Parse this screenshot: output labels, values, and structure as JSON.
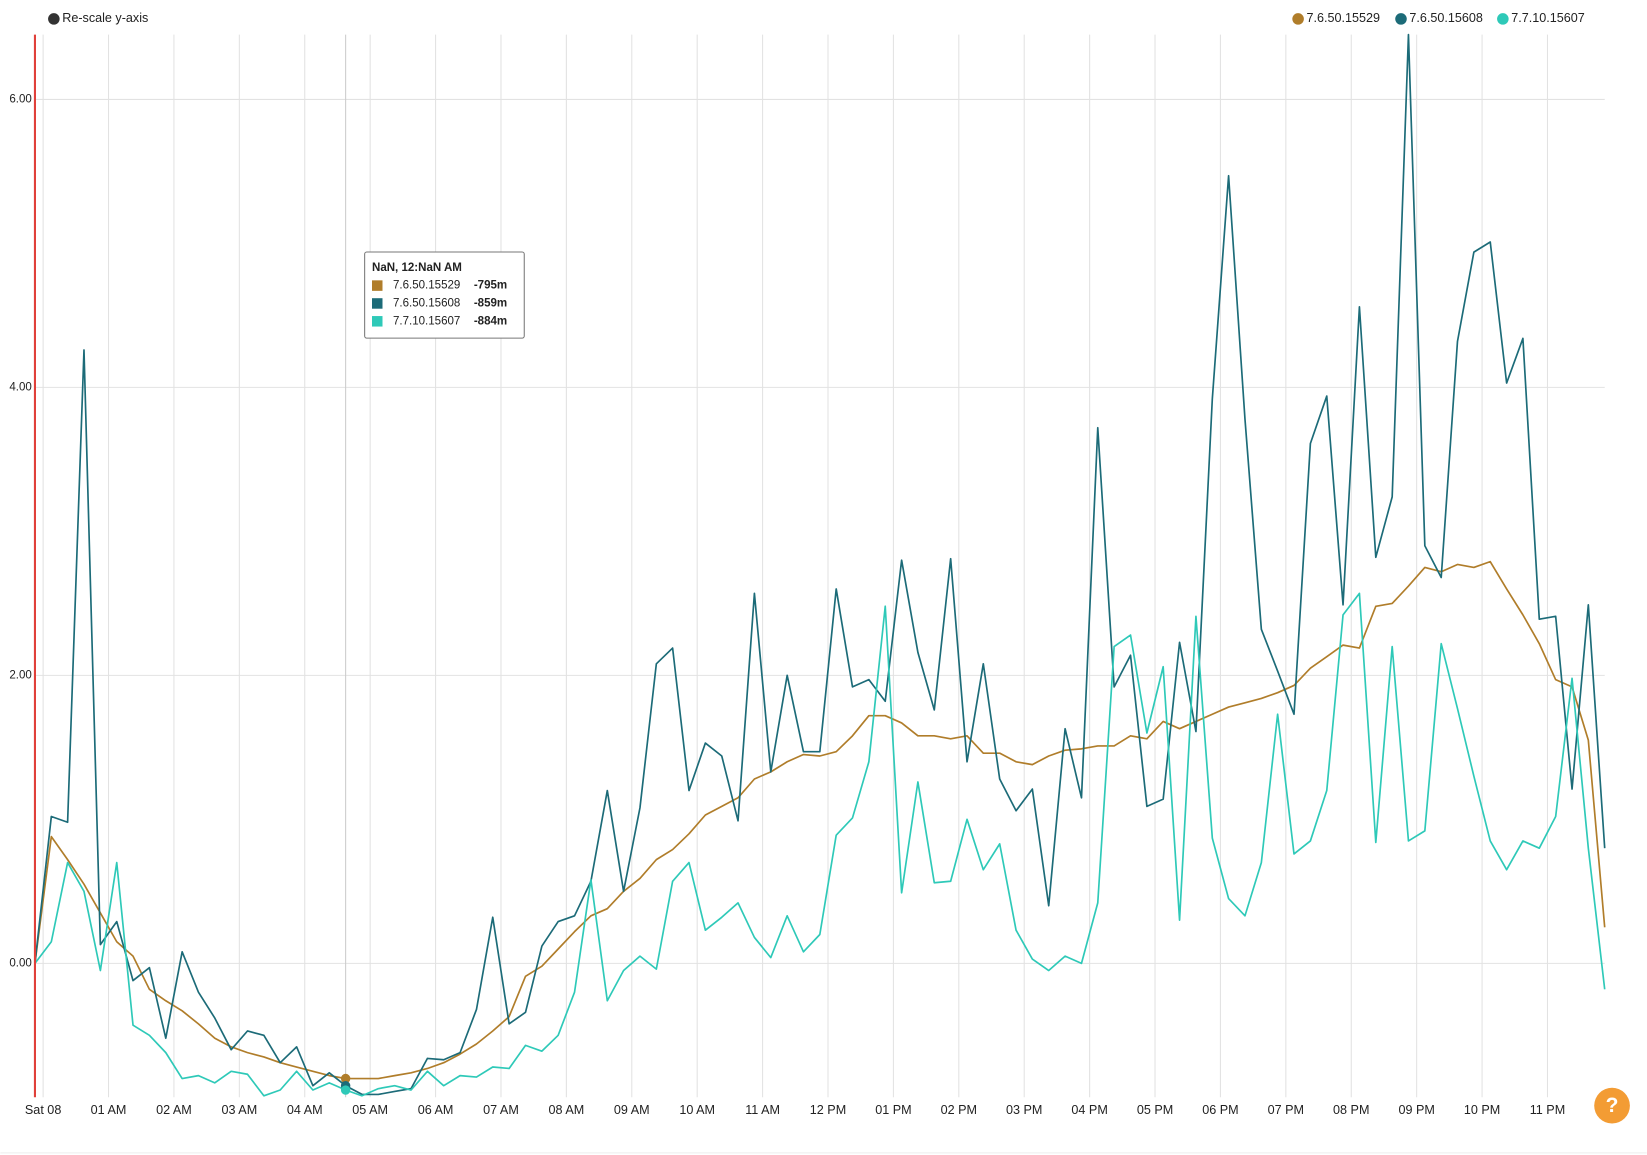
{
  "rescale_button": "Re-scale y-axis",
  "tooltip": {
    "title": "NaN, 12:NaN AM",
    "values": [
      "-795m",
      "-859m",
      "-884m"
    ]
  },
  "help_button": "?",
  "chart_data": {
    "type": "line",
    "grid": true,
    "legend": "top-right",
    "xlim": [
      0,
      96
    ],
    "ylim": [
      -0.93,
      6.45
    ],
    "yticks": [
      {
        "value": 0,
        "label": "0.00"
      },
      {
        "value": 2,
        "label": "2.00"
      },
      {
        "value": 4,
        "label": "4.00"
      },
      {
        "value": 6,
        "label": "6.00"
      }
    ],
    "xticks": [
      {
        "value": 0.5,
        "label": "Sat 08"
      },
      {
        "value": 4.5,
        "label": "01 AM"
      },
      {
        "value": 8.5,
        "label": "02 AM"
      },
      {
        "value": 12.5,
        "label": "03 AM"
      },
      {
        "value": 16.5,
        "label": "04 AM"
      },
      {
        "value": 20.5,
        "label": "05 AM"
      },
      {
        "value": 24.5,
        "label": "06 AM"
      },
      {
        "value": 28.5,
        "label": "07 AM"
      },
      {
        "value": 32.5,
        "label": "08 AM"
      },
      {
        "value": 36.5,
        "label": "09 AM"
      },
      {
        "value": 40.5,
        "label": "10 AM"
      },
      {
        "value": 44.5,
        "label": "11 AM"
      },
      {
        "value": 48.5,
        "label": "12 PM"
      },
      {
        "value": 52.5,
        "label": "01 PM"
      },
      {
        "value": 56.5,
        "label": "02 PM"
      },
      {
        "value": 60.5,
        "label": "03 PM"
      },
      {
        "value": 64.5,
        "label": "04 PM"
      },
      {
        "value": 68.5,
        "label": "05 PM"
      },
      {
        "value": 72.5,
        "label": "06 PM"
      },
      {
        "value": 76.5,
        "label": "07 PM"
      },
      {
        "value": 80.5,
        "label": "08 PM"
      },
      {
        "value": 84.5,
        "label": "09 PM"
      },
      {
        "value": 88.5,
        "label": "10 PM"
      },
      {
        "value": 92.5,
        "label": "11 PM"
      }
    ],
    "series": [
      {
        "name": "7.6.50.15529",
        "color": "#b07d2a",
        "values": [
          0,
          0.88,
          0.72,
          0.55,
          0.35,
          0.15,
          0.05,
          -0.18,
          -0.26,
          -0.33,
          -0.42,
          -0.52,
          -0.58,
          -0.62,
          -0.65,
          -0.69,
          -0.72,
          -0.75,
          -0.78,
          -0.8,
          -0.8,
          -0.8,
          -0.78,
          -0.76,
          -0.73,
          -0.69,
          -0.63,
          -0.56,
          -0.47,
          -0.37,
          -0.09,
          -0.02,
          0.1,
          0.22,
          0.33,
          0.38,
          0.5,
          0.59,
          0.72,
          0.79,
          0.9,
          1.03,
          1.09,
          1.15,
          1.28,
          1.33,
          1.4,
          1.45,
          1.44,
          1.47,
          1.58,
          1.72,
          1.72,
          1.67,
          1.58,
          1.58,
          1.56,
          1.58,
          1.46,
          1.46,
          1.4,
          1.38,
          1.44,
          1.48,
          1.49,
          1.51,
          1.51,
          1.58,
          1.56,
          1.68,
          1.63,
          1.68,
          1.73,
          1.78,
          1.81,
          1.84,
          1.88,
          1.93,
          2.05,
          2.13,
          2.21,
          2.19,
          2.48,
          2.5,
          2.62,
          2.75,
          2.72,
          2.77,
          2.75,
          2.79,
          2.6,
          2.42,
          2.22,
          1.97,
          1.92,
          1.55,
          0.25
        ]
      },
      {
        "name": "7.6.50.15608",
        "color": "#1c6b78",
        "values": [
          0,
          1.02,
          0.98,
          4.26,
          0.13,
          0.29,
          -0.12,
          -0.03,
          -0.52,
          0.08,
          -0.2,
          -0.38,
          -0.6,
          -0.47,
          -0.5,
          -0.69,
          -0.58,
          -0.85,
          -0.76,
          -0.85,
          -0.91,
          -0.91,
          -0.89,
          -0.87,
          -0.66,
          -0.67,
          -0.62,
          -0.32,
          0.32,
          -0.42,
          -0.34,
          0.12,
          0.29,
          0.33,
          0.57,
          1.2,
          0.5,
          1.08,
          2.08,
          2.19,
          1.2,
          1.53,
          1.44,
          0.99,
          2.57,
          1.33,
          2.0,
          1.47,
          1.47,
          2.6,
          1.92,
          1.97,
          1.82,
          2.8,
          2.16,
          1.76,
          2.81,
          1.4,
          2.08,
          1.28,
          1.06,
          1.21,
          0.4,
          1.63,
          1.15,
          3.72,
          1.92,
          2.14,
          1.09,
          1.14,
          2.23,
          1.61,
          3.92,
          5.47,
          3.78,
          2.32,
          2.03,
          1.73,
          3.61,
          3.94,
          2.49,
          4.56,
          2.82,
          3.24,
          6.45,
          2.9,
          2.68,
          4.32,
          4.94,
          5.01,
          4.03,
          4.34,
          2.39,
          2.41,
          1.21,
          2.49,
          0.8
        ]
      },
      {
        "name": "7.7.10.15607",
        "color": "#2ec9b8",
        "values": [
          0,
          0.15,
          0.7,
          0.5,
          -0.05,
          0.7,
          -0.43,
          -0.5,
          -0.62,
          -0.8,
          -0.78,
          -0.83,
          -0.75,
          -0.77,
          -0.92,
          -0.88,
          -0.75,
          -0.88,
          -0.83,
          -0.88,
          -0.92,
          -0.87,
          -0.85,
          -0.88,
          -0.75,
          -0.85,
          -0.78,
          -0.79,
          -0.72,
          -0.73,
          -0.57,
          -0.61,
          -0.5,
          -0.2,
          0.58,
          -0.26,
          -0.05,
          0.05,
          -0.04,
          0.57,
          0.7,
          0.23,
          0.32,
          0.42,
          0.18,
          0.04,
          0.33,
          0.08,
          0.2,
          0.89,
          1.01,
          1.4,
          2.48,
          0.49,
          1.26,
          0.56,
          0.57,
          1.0,
          0.65,
          0.83,
          0.23,
          0.03,
          -0.05,
          0.05,
          0.0,
          0.42,
          2.2,
          2.28,
          1.6,
          2.06,
          0.3,
          2.41,
          0.87,
          0.45,
          0.33,
          0.7,
          1.73,
          0.76,
          0.85,
          1.2,
          2.42,
          2.57,
          0.84,
          2.2,
          0.85,
          0.92,
          2.22,
          1.77,
          1.3,
          0.85,
          0.65,
          0.85,
          0.8,
          1.02,
          1.98,
          0.8,
          -0.18
        ]
      }
    ]
  }
}
